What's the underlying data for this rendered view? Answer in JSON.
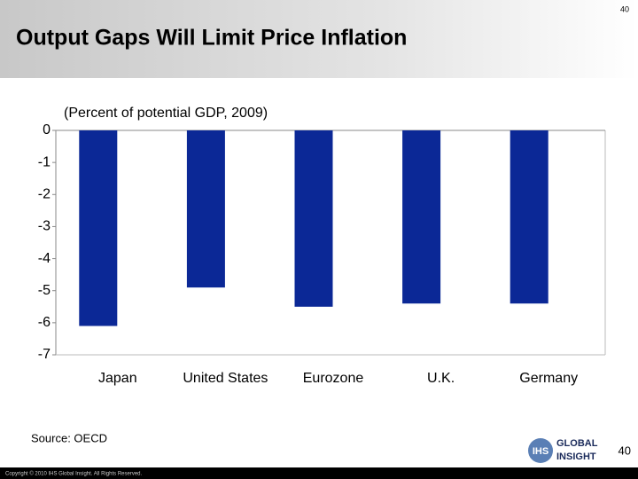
{
  "slide_number": "40",
  "source": "Source: OECD",
  "footer_page": "40",
  "copyright": "Copyright © 2010 IHS Global Insight. All Rights Reserved.",
  "logo": {
    "mark": "IHS",
    "line1": "GLOBAL",
    "line2": "INSIGHT"
  },
  "chart_data": {
    "type": "bar",
    "title": "Output Gaps Will Limit Price Inflation",
    "subtitle": "(Percent of potential GDP, 2009)",
    "categories": [
      "Japan",
      "United States",
      "Eurozone",
      "U.K.",
      "Germany"
    ],
    "values": [
      -6.1,
      -4.9,
      -5.5,
      -5.4,
      -5.4
    ],
    "color": "#0b2896",
    "ylim": [
      -7,
      0
    ],
    "yticks": [
      0,
      -1,
      -2,
      -3,
      -4,
      -5,
      -6,
      -7
    ],
    "grid": false
  }
}
